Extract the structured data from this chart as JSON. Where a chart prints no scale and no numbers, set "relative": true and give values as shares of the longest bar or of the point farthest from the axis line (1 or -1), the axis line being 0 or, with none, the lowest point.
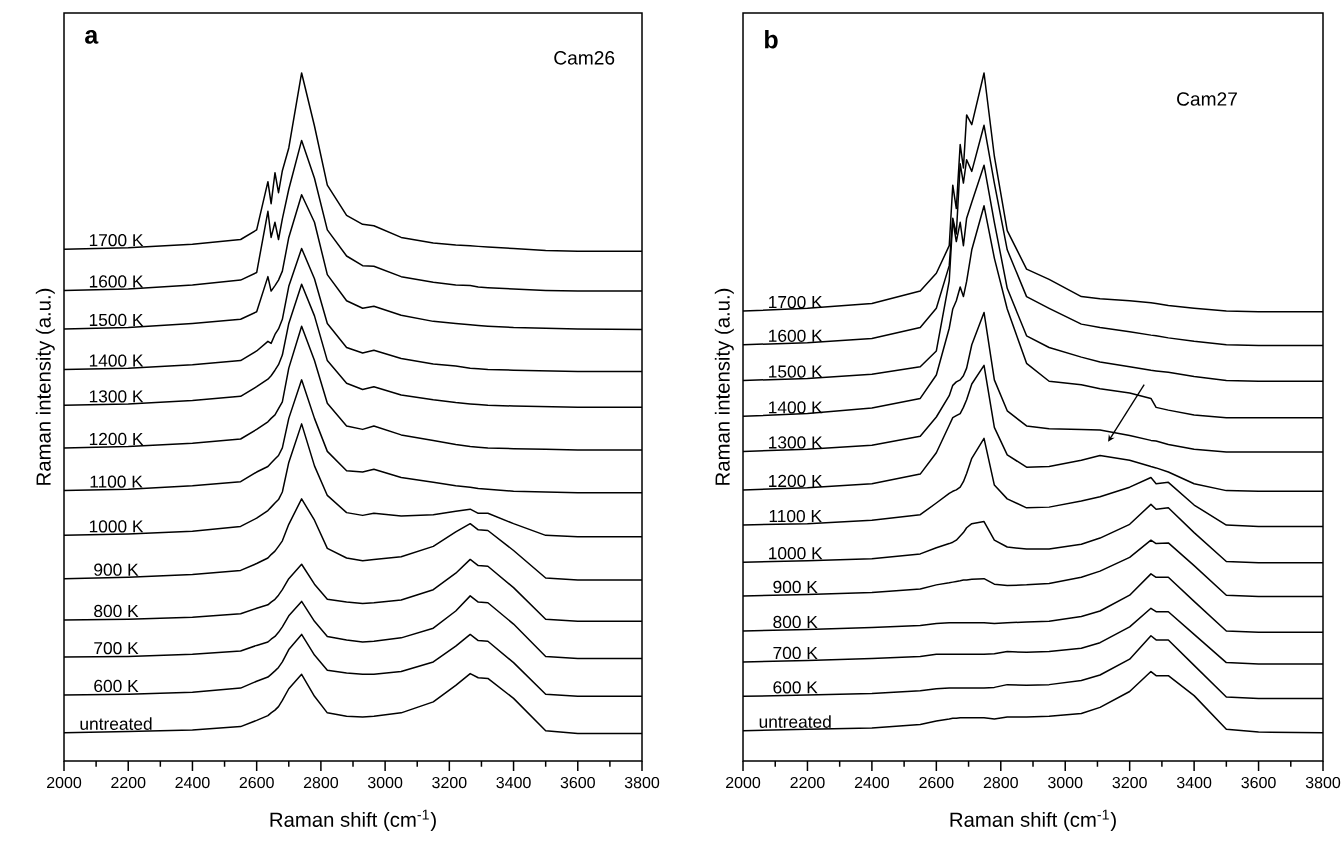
{
  "chart_data": [
    {
      "type": "line",
      "title": "a",
      "annotations": [
        "Cam26"
      ],
      "xlabel": "Raman shift (cm$^{-1}$)",
      "ylabel": "Raman intensity (a.u.)",
      "relative": true,
      "xlim": [
        2000,
        3800
      ],
      "xticks": [
        2000,
        2200,
        2400,
        2600,
        2800,
        3000,
        3200,
        3400,
        3600,
        3800
      ],
      "marker": "none",
      "line_style": "solid",
      "x": [
        2000,
        2200,
        2400,
        2550,
        2600,
        2635,
        2645,
        2657,
        2668,
        2680,
        2700,
        2740,
        2780,
        2820,
        2880,
        2930,
        2965,
        3050,
        3150,
        3220,
        3265,
        3290,
        3320,
        3400,
        3500,
        3600,
        3800
      ],
      "series": [
        {
          "name": "1700 K",
          "color": "#000000",
          "values": [
            0.744,
            0.746,
            0.751,
            0.758,
            0.772,
            0.842,
            0.81,
            0.855,
            0.826,
            0.858,
            0.891,
            1.0,
            0.923,
            0.837,
            0.793,
            0.78,
            0.778,
            0.761,
            0.753,
            0.75,
            0.749,
            0.748,
            0.747,
            0.745,
            0.742,
            0.741,
            0.741
          ]
        },
        {
          "name": "1600 K",
          "color": "#000000",
          "values": [
            0.684,
            0.686,
            0.692,
            0.699,
            0.71,
            0.799,
            0.761,
            0.783,
            0.758,
            0.788,
            0.831,
            0.902,
            0.847,
            0.772,
            0.734,
            0.72,
            0.719,
            0.704,
            0.696,
            0.692,
            0.691,
            0.689,
            0.688,
            0.686,
            0.684,
            0.683,
            0.683
          ]
        },
        {
          "name": "1500 K",
          "color": "#000000",
          "values": [
            0.628,
            0.63,
            0.636,
            0.642,
            0.653,
            0.704,
            0.683,
            0.691,
            0.699,
            0.712,
            0.761,
            0.823,
            0.783,
            0.707,
            0.669,
            0.658,
            0.661,
            0.648,
            0.639,
            0.636,
            0.634,
            0.633,
            0.632,
            0.63,
            0.629,
            0.628,
            0.627
          ]
        },
        {
          "name": "1400 K",
          "color": "#000000",
          "values": [
            0.569,
            0.571,
            0.576,
            0.582,
            0.596,
            0.61,
            0.607,
            0.62,
            0.628,
            0.642,
            0.69,
            0.745,
            0.701,
            0.636,
            0.601,
            0.593,
            0.597,
            0.585,
            0.577,
            0.574,
            0.571,
            0.57,
            0.569,
            0.568,
            0.567,
            0.566,
            0.566
          ]
        },
        {
          "name": "1300 K",
          "color": "#000000",
          "values": [
            0.517,
            0.519,
            0.524,
            0.53,
            0.544,
            0.555,
            0.56,
            0.568,
            0.576,
            0.59,
            0.636,
            0.693,
            0.647,
            0.582,
            0.549,
            0.54,
            0.544,
            0.532,
            0.525,
            0.521,
            0.519,
            0.518,
            0.517,
            0.516,
            0.515,
            0.514,
            0.514
          ]
        },
        {
          "name": "1200 K",
          "color": "#000000",
          "values": [
            0.455,
            0.457,
            0.462,
            0.468,
            0.482,
            0.493,
            0.498,
            0.503,
            0.512,
            0.522,
            0.571,
            0.632,
            0.582,
            0.52,
            0.487,
            0.482,
            0.487,
            0.474,
            0.466,
            0.46,
            0.457,
            0.456,
            0.455,
            0.454,
            0.453,
            0.452,
            0.452
          ]
        },
        {
          "name": "1100 K",
          "color": "#000000",
          "values": [
            0.393,
            0.395,
            0.4,
            0.406,
            0.42,
            0.428,
            0.433,
            0.439,
            0.444,
            0.455,
            0.498,
            0.554,
            0.498,
            0.45,
            0.422,
            0.42,
            0.424,
            0.412,
            0.405,
            0.4,
            0.398,
            0.396,
            0.395,
            0.392,
            0.391,
            0.39,
            0.39
          ]
        },
        {
          "name": "1000 K",
          "color": "#000000",
          "values": [
            0.328,
            0.33,
            0.334,
            0.341,
            0.353,
            0.364,
            0.369,
            0.375,
            0.38,
            0.391,
            0.434,
            0.49,
            0.429,
            0.386,
            0.361,
            0.357,
            0.36,
            0.356,
            0.358,
            0.363,
            0.366,
            0.36,
            0.36,
            0.345,
            0.328,
            0.326,
            0.326
          ]
        },
        {
          "name": "900 K",
          "color": "#000000",
          "values": [
            0.265,
            0.267,
            0.271,
            0.277,
            0.287,
            0.295,
            0.3,
            0.305,
            0.312,
            0.32,
            0.344,
            0.381,
            0.35,
            0.309,
            0.295,
            0.291,
            0.293,
            0.297,
            0.312,
            0.333,
            0.345,
            0.336,
            0.335,
            0.306,
            0.266,
            0.263,
            0.263
          ]
        },
        {
          "name": "800 K",
          "color": "#000000",
          "values": [
            0.205,
            0.206,
            0.209,
            0.214,
            0.222,
            0.227,
            0.231,
            0.235,
            0.241,
            0.249,
            0.265,
            0.286,
            0.257,
            0.235,
            0.231,
            0.229,
            0.23,
            0.234,
            0.249,
            0.273,
            0.293,
            0.284,
            0.283,
            0.252,
            0.206,
            0.203,
            0.203
          ]
        },
        {
          "name": "700 K",
          "color": "#000000",
          "values": [
            0.151,
            0.152,
            0.155,
            0.16,
            0.168,
            0.173,
            0.177,
            0.181,
            0.187,
            0.195,
            0.211,
            0.232,
            0.203,
            0.181,
            0.176,
            0.173,
            0.174,
            0.179,
            0.193,
            0.218,
            0.24,
            0.231,
            0.23,
            0.199,
            0.152,
            0.149,
            0.149
          ]
        },
        {
          "name": "600 K",
          "color": "#000000",
          "values": [
            0.096,
            0.097,
            0.1,
            0.106,
            0.116,
            0.122,
            0.126,
            0.131,
            0.136,
            0.144,
            0.162,
            0.184,
            0.154,
            0.132,
            0.128,
            0.126,
            0.126,
            0.13,
            0.144,
            0.167,
            0.184,
            0.175,
            0.174,
            0.143,
            0.097,
            0.094,
            0.094
          ]
        },
        {
          "name": "untreated",
          "color": "#000000",
          "values": [
            0.041,
            0.043,
            0.045,
            0.05,
            0.059,
            0.066,
            0.07,
            0.074,
            0.079,
            0.088,
            0.105,
            0.126,
            0.094,
            0.07,
            0.065,
            0.064,
            0.065,
            0.07,
            0.086,
            0.11,
            0.127,
            0.121,
            0.12,
            0.091,
            0.044,
            0.04,
            0.04
          ]
        }
      ]
    },
    {
      "type": "line",
      "title": "b",
      "annotations": [
        "Cam27"
      ],
      "xlabel": "Raman shift  (cm$^{-1}$)",
      "ylabel": "Raman intensity (a.u.)",
      "relative": true,
      "xlim": [
        2000,
        3800
      ],
      "xticks": [
        2000,
        2200,
        2400,
        2600,
        2800,
        3000,
        3200,
        3400,
        3600,
        3800
      ],
      "marker": "none",
      "line_style": "solid",
      "x": [
        2000,
        2200,
        2400,
        2550,
        2600,
        2640,
        2651,
        2662,
        2674,
        2684,
        2694,
        2710,
        2748,
        2780,
        2820,
        2880,
        2950,
        3050,
        3108,
        3200,
        3266,
        3282,
        3320,
        3400,
        3500,
        3600,
        3800
      ],
      "series": [
        {
          "name": "1700 K",
          "color": "#000000",
          "values": [
            0.654,
            0.658,
            0.665,
            0.683,
            0.709,
            0.749,
            0.837,
            0.803,
            0.896,
            0.862,
            0.939,
            0.925,
            1.0,
            0.879,
            0.771,
            0.715,
            0.7,
            0.675,
            0.672,
            0.669,
            0.666,
            0.665,
            0.662,
            0.658,
            0.654,
            0.653,
            0.653
          ]
        },
        {
          "name": "1600 K",
          "color": "#000000",
          "values": [
            0.605,
            0.608,
            0.614,
            0.63,
            0.658,
            0.72,
            0.789,
            0.766,
            0.868,
            0.84,
            0.874,
            0.857,
            0.924,
            0.84,
            0.743,
            0.675,
            0.658,
            0.635,
            0.63,
            0.624,
            0.619,
            0.618,
            0.615,
            0.61,
            0.605,
            0.604,
            0.604
          ]
        },
        {
          "name": "1500 K",
          "color": "#000000",
          "values": [
            0.553,
            0.556,
            0.562,
            0.573,
            0.596,
            0.698,
            0.786,
            0.755,
            0.783,
            0.749,
            0.789,
            0.812,
            0.866,
            0.783,
            0.687,
            0.618,
            0.601,
            0.587,
            0.58,
            0.573,
            0.568,
            0.567,
            0.565,
            0.559,
            0.553,
            0.552,
            0.552
          ]
        },
        {
          "name": "1400 K",
          "color": "#000000",
          "values": [
            0.501,
            0.505,
            0.513,
            0.527,
            0.561,
            0.629,
            0.657,
            0.669,
            0.689,
            0.675,
            0.697,
            0.743,
            0.807,
            0.731,
            0.657,
            0.578,
            0.552,
            0.547,
            0.541,
            0.535,
            0.527,
            0.514,
            0.51,
            0.503,
            0.499,
            0.499,
            0.499
          ]
        },
        {
          "name": "1300 K",
          "color": "#000000",
          "values": [
            0.45,
            0.453,
            0.459,
            0.472,
            0.5,
            0.531,
            0.546,
            0.551,
            0.554,
            0.56,
            0.571,
            0.605,
            0.652,
            0.554,
            0.509,
            0.487,
            0.483,
            0.482,
            0.481,
            0.473,
            0.466,
            0.465,
            0.46,
            0.453,
            0.449,
            0.449,
            0.449
          ]
        },
        {
          "name": "1200 K",
          "color": "#000000",
          "values": [
            0.394,
            0.397,
            0.403,
            0.417,
            0.448,
            0.488,
            0.499,
            0.502,
            0.505,
            0.514,
            0.525,
            0.548,
            0.575,
            0.485,
            0.445,
            0.427,
            0.428,
            0.437,
            0.444,
            0.437,
            0.428,
            0.426,
            0.42,
            0.403,
            0.393,
            0.392,
            0.392
          ]
        },
        {
          "name": "1100 K",
          "color": "#000000",
          "values": [
            0.343,
            0.345,
            0.35,
            0.358,
            0.375,
            0.389,
            0.392,
            0.394,
            0.398,
            0.406,
            0.418,
            0.44,
            0.469,
            0.401,
            0.381,
            0.368,
            0.369,
            0.378,
            0.384,
            0.398,
            0.412,
            0.403,
            0.405,
            0.372,
            0.343,
            0.341,
            0.341
          ]
        },
        {
          "name": "1000 K",
          "color": "#000000",
          "values": [
            0.289,
            0.291,
            0.294,
            0.301,
            0.31,
            0.316,
            0.318,
            0.321,
            0.327,
            0.332,
            0.339,
            0.345,
            0.348,
            0.321,
            0.311,
            0.308,
            0.308,
            0.315,
            0.324,
            0.344,
            0.373,
            0.366,
            0.368,
            0.332,
            0.29,
            0.288,
            0.288
          ]
        },
        {
          "name": "900 K",
          "color": "#000000",
          "values": [
            0.24,
            0.242,
            0.245,
            0.25,
            0.256,
            0.259,
            0.26,
            0.261,
            0.262,
            0.263,
            0.263,
            0.264,
            0.265,
            0.257,
            0.255,
            0.256,
            0.258,
            0.267,
            0.276,
            0.296,
            0.321,
            0.316,
            0.317,
            0.284,
            0.241,
            0.239,
            0.239
          ]
        },
        {
          "name": "800 K",
          "color": "#000000",
          "values": [
            0.189,
            0.191,
            0.194,
            0.197,
            0.2,
            0.201,
            0.201,
            0.201,
            0.201,
            0.201,
            0.201,
            0.201,
            0.201,
            0.2,
            0.201,
            0.202,
            0.203,
            0.21,
            0.218,
            0.241,
            0.272,
            0.267,
            0.267,
            0.232,
            0.189,
            0.187,
            0.187
          ]
        },
        {
          "name": "700 K",
          "color": "#000000",
          "values": [
            0.144,
            0.146,
            0.149,
            0.152,
            0.155,
            0.155,
            0.155,
            0.155,
            0.155,
            0.155,
            0.155,
            0.155,
            0.155,
            0.156,
            0.159,
            0.158,
            0.159,
            0.164,
            0.172,
            0.195,
            0.222,
            0.217,
            0.217,
            0.184,
            0.143,
            0.141,
            0.141
          ]
        },
        {
          "name": "600 K",
          "color": "#000000",
          "values": [
            0.094,
            0.096,
            0.098,
            0.102,
            0.105,
            0.106,
            0.106,
            0.106,
            0.106,
            0.106,
            0.106,
            0.106,
            0.106,
            0.107,
            0.111,
            0.11,
            0.111,
            0.117,
            0.125,
            0.148,
            0.182,
            0.176,
            0.176,
            0.139,
            0.093,
            0.091,
            0.091
          ]
        },
        {
          "name": "untreated",
          "color": "#000000",
          "values": [
            0.044,
            0.046,
            0.048,
            0.053,
            0.058,
            0.061,
            0.062,
            0.062,
            0.063,
            0.063,
            0.063,
            0.063,
            0.063,
            0.061,
            0.064,
            0.064,
            0.065,
            0.069,
            0.078,
            0.101,
            0.13,
            0.124,
            0.124,
            0.095,
            0.046,
            0.042,
            0.041
          ]
        }
      ]
    }
  ]
}
